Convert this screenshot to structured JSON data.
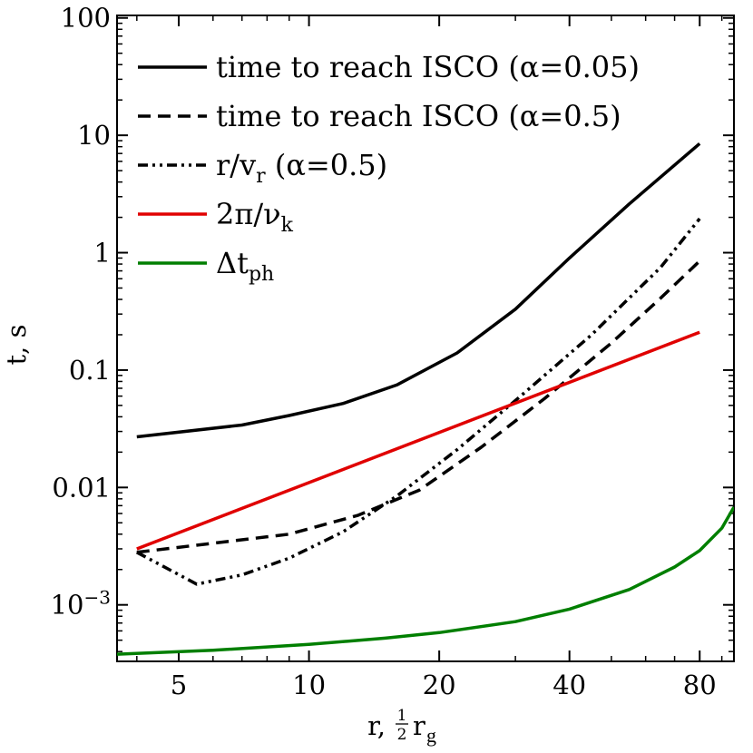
{
  "chart_data": {
    "type": "line",
    "xlabel": "r, ",
    "xlabel_frac": {
      "num": "1",
      "den": "2"
    },
    "xlabel_sym": "r",
    "xlabel_sub": "g",
    "ylabel": "t, s",
    "x_scale": "log",
    "y_scale": "log",
    "xlim": [
      3.6,
      96
    ],
    "ylim": [
      0.00033,
      105
    ],
    "grid": false,
    "legend_position": "top-left",
    "x_ticks": [
      {
        "value": 5,
        "label": "5"
      },
      {
        "value": 10,
        "label": "10"
      },
      {
        "value": 20,
        "label": "20"
      },
      {
        "value": 40,
        "label": "40"
      },
      {
        "value": 80,
        "label": "80"
      }
    ],
    "y_ticks": [
      {
        "value": 100,
        "label": "100"
      },
      {
        "value": 10,
        "label": "10"
      },
      {
        "value": 1,
        "label": "1"
      },
      {
        "value": 0.1,
        "label": "0.1"
      },
      {
        "value": 0.01,
        "label": "0.01"
      },
      {
        "value": 0.001,
        "label": "10",
        "sup": "−3"
      }
    ],
    "series": [
      {
        "name": "time to reach ISCO (α=0.05)",
        "legend": {
          "text": "time to reach ISCO (α=0.05)"
        },
        "color": "#000000",
        "dash": "solid",
        "x": [
          4,
          7,
          9,
          12,
          16,
          22,
          30,
          40,
          55,
          80
        ],
        "y": [
          0.027,
          0.034,
          0.041,
          0.052,
          0.075,
          0.14,
          0.33,
          0.9,
          2.6,
          8.5
        ]
      },
      {
        "name": "time to reach ISCO (α=0.5)",
        "legend": {
          "text": "time to reach ISCO (α=0.5)"
        },
        "color": "#000000",
        "dash": "dashed",
        "x": [
          4,
          9,
          13,
          18,
          25,
          35,
          50,
          65,
          80
        ],
        "y": [
          0.0028,
          0.004,
          0.0058,
          0.0095,
          0.022,
          0.057,
          0.17,
          0.41,
          0.85
        ]
      },
      {
        "name": "r/v_r (α=0.5)",
        "legend": {
          "text": "r/v",
          "sub": "r",
          "suffix": " (α=0.5)"
        },
        "color": "#000000",
        "dash": "dashdotdot",
        "x": [
          4,
          5.5,
          7,
          9,
          12,
          16,
          22,
          30,
          45,
          65,
          80
        ],
        "y": [
          0.0028,
          0.0015,
          0.0018,
          0.0025,
          0.0042,
          0.0085,
          0.021,
          0.055,
          0.2,
          0.75,
          1.95
        ]
      },
      {
        "name": "2π/ν_k",
        "legend": {
          "text": "2π/ν",
          "sub": "k"
        },
        "color": "#e00000",
        "dash": "solid",
        "x": [
          4,
          80
        ],
        "y": [
          0.003,
          0.21
        ]
      },
      {
        "name": "Δt_ph",
        "legend": {
          "text": "Δt",
          "sub": "ph"
        },
        "color": "#007f00",
        "dash": "solid",
        "x": [
          3.6,
          6,
          10,
          15,
          20,
          30,
          40,
          55,
          70,
          80,
          90,
          96
        ],
        "y": [
          0.00038,
          0.00041,
          0.00046,
          0.00052,
          0.00058,
          0.00072,
          0.00092,
          0.00135,
          0.0021,
          0.0029,
          0.0045,
          0.0068
        ]
      }
    ]
  }
}
